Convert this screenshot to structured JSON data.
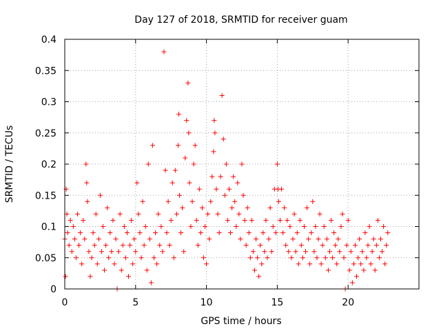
{
  "chart_data": {
    "type": "scatter",
    "title": "Day 127 of 2018, SRMTID for receiver guam",
    "xlabel": "GPS time / hours",
    "ylabel": "SRMTID / TECUs",
    "xlim": [
      0,
      25
    ],
    "ylim": [
      0,
      0.4
    ],
    "x_ticks": [
      0,
      5,
      10,
      15,
      20
    ],
    "x_tick_labels": [
      "0",
      "5",
      "10",
      "15",
      "20"
    ],
    "y_ticks": [
      0,
      0.05,
      0.1,
      0.15,
      0.2,
      0.25,
      0.3,
      0.35,
      0.4
    ],
    "y_tick_labels": [
      "0",
      "0.05",
      "0.1",
      "0.15",
      "0.2",
      "0.25",
      "0.3",
      "0.35",
      "0.4"
    ],
    "grid": true,
    "marker": "+",
    "color": "#ff0000",
    "series": [
      {
        "name": "SRMTID",
        "points": [
          [
            0.0,
            0.08
          ],
          [
            0.05,
            0.02
          ],
          [
            0.1,
            0.16
          ],
          [
            0.15,
            0.12
          ],
          [
            0.2,
            0.09
          ],
          [
            0.3,
            0.07
          ],
          [
            0.4,
            0.11
          ],
          [
            0.5,
            0.06
          ],
          [
            0.6,
            0.1
          ],
          [
            0.7,
            0.08
          ],
          [
            0.8,
            0.05
          ],
          [
            0.9,
            0.12
          ],
          [
            1.0,
            0.07
          ],
          [
            1.1,
            0.09
          ],
          [
            1.2,
            0.04
          ],
          [
            1.3,
            0.11
          ],
          [
            1.4,
            0.08
          ],
          [
            1.5,
            0.2
          ],
          [
            1.55,
            0.17
          ],
          [
            1.6,
            0.14
          ],
          [
            1.7,
            0.06
          ],
          [
            1.8,
            0.02
          ],
          [
            1.9,
            0.05
          ],
          [
            2.0,
            0.09
          ],
          [
            2.1,
            0.07
          ],
          [
            2.2,
            0.12
          ],
          [
            2.3,
            0.04
          ],
          [
            2.4,
            0.08
          ],
          [
            2.5,
            0.15
          ],
          [
            2.6,
            0.06
          ],
          [
            2.7,
            0.1
          ],
          [
            2.8,
            0.03
          ],
          [
            2.9,
            0.07
          ],
          [
            3.0,
            0.13
          ],
          [
            3.1,
            0.05
          ],
          [
            3.2,
            0.09
          ],
          [
            3.3,
            0.06
          ],
          [
            3.4,
            0.11
          ],
          [
            3.5,
            0.04
          ],
          [
            3.6,
            0.08
          ],
          [
            3.7,
            0.0
          ],
          [
            3.8,
            0.06
          ],
          [
            3.9,
            0.12
          ],
          [
            4.0,
            0.03
          ],
          [
            4.1,
            0.07
          ],
          [
            4.2,
            0.1
          ],
          [
            4.3,
            0.05
          ],
          [
            4.4,
            0.09
          ],
          [
            4.5,
            0.02
          ],
          [
            4.6,
            0.07
          ],
          [
            4.7,
            0.11
          ],
          [
            4.8,
            0.04
          ],
          [
            4.9,
            0.08
          ],
          [
            5.0,
            0.06
          ],
          [
            5.1,
            0.17
          ],
          [
            5.2,
            0.12
          ],
          [
            5.3,
            0.09
          ],
          [
            5.4,
            0.05
          ],
          [
            5.5,
            0.14
          ],
          [
            5.6,
            0.07
          ],
          [
            5.7,
            0.1
          ],
          [
            5.8,
            0.03
          ],
          [
            5.9,
            0.2
          ],
          [
            6.0,
            0.08
          ],
          [
            6.1,
            0.01
          ],
          [
            6.2,
            0.23
          ],
          [
            6.3,
            0.05
          ],
          [
            6.4,
            0.09
          ],
          [
            6.5,
            0.04
          ],
          [
            6.6,
            0.12
          ],
          [
            6.7,
            0.07
          ],
          [
            6.8,
            0.1
          ],
          [
            6.9,
            0.06
          ],
          [
            7.0,
            0.38
          ],
          [
            7.1,
            0.19
          ],
          [
            7.2,
            0.09
          ],
          [
            7.3,
            0.14
          ],
          [
            7.4,
            0.07
          ],
          [
            7.5,
            0.11
          ],
          [
            7.6,
            0.17
          ],
          [
            7.7,
            0.05
          ],
          [
            7.8,
            0.19
          ],
          [
            7.9,
            0.12
          ],
          [
            8.0,
            0.23
          ],
          [
            8.05,
            0.28
          ],
          [
            8.1,
            0.15
          ],
          [
            8.2,
            0.09
          ],
          [
            8.3,
            0.13
          ],
          [
            8.4,
            0.06
          ],
          [
            8.5,
            0.21
          ],
          [
            8.6,
            0.27
          ],
          [
            8.7,
            0.33
          ],
          [
            8.75,
            0.25
          ],
          [
            8.8,
            0.17
          ],
          [
            8.9,
            0.1
          ],
          [
            9.0,
            0.14
          ],
          [
            9.1,
            0.2
          ],
          [
            9.2,
            0.23
          ],
          [
            9.3,
            0.11
          ],
          [
            9.4,
            0.07
          ],
          [
            9.5,
            0.16
          ],
          [
            9.6,
            0.09
          ],
          [
            9.7,
            0.13
          ],
          [
            9.8,
            0.05
          ],
          [
            9.9,
            0.1
          ],
          [
            10.0,
            0.04
          ],
          [
            10.1,
            0.12
          ],
          [
            10.2,
            0.08
          ],
          [
            10.3,
            0.14
          ],
          [
            10.4,
            0.18
          ],
          [
            10.5,
            0.22
          ],
          [
            10.55,
            0.27
          ],
          [
            10.6,
            0.25
          ],
          [
            10.7,
            0.16
          ],
          [
            10.8,
            0.12
          ],
          [
            10.9,
            0.09
          ],
          [
            11.0,
            0.18
          ],
          [
            11.1,
            0.31
          ],
          [
            11.2,
            0.24
          ],
          [
            11.3,
            0.15
          ],
          [
            11.4,
            0.2
          ],
          [
            11.5,
            0.11
          ],
          [
            11.6,
            0.16
          ],
          [
            11.7,
            0.09
          ],
          [
            11.8,
            0.13
          ],
          [
            11.9,
            0.18
          ],
          [
            12.0,
            0.14
          ],
          [
            12.1,
            0.1
          ],
          [
            12.2,
            0.17
          ],
          [
            12.3,
            0.12
          ],
          [
            12.4,
            0.08
          ],
          [
            12.5,
            0.2
          ],
          [
            12.6,
            0.15
          ],
          [
            12.7,
            0.11
          ],
          [
            12.8,
            0.07
          ],
          [
            12.9,
            0.13
          ],
          [
            13.0,
            0.09
          ],
          [
            13.1,
            0.05
          ],
          [
            13.2,
            0.11
          ],
          [
            13.3,
            0.06
          ],
          [
            13.4,
            0.03
          ],
          [
            13.5,
            0.08
          ],
          [
            13.6,
            0.05
          ],
          [
            13.7,
            0.02
          ],
          [
            13.8,
            0.07
          ],
          [
            13.9,
            0.04
          ],
          [
            14.0,
            0.09
          ],
          [
            14.1,
            0.06
          ],
          [
            14.2,
            0.11
          ],
          [
            14.3,
            0.05
          ],
          [
            14.4,
            0.08
          ],
          [
            14.5,
            0.13
          ],
          [
            14.6,
            0.06
          ],
          [
            14.7,
            0.1
          ],
          [
            14.8,
            0.16
          ],
          [
            14.9,
            0.09
          ],
          [
            15.0,
            0.2
          ],
          [
            15.05,
            0.16
          ],
          [
            15.1,
            0.14
          ],
          [
            15.2,
            0.11
          ],
          [
            15.3,
            0.16
          ],
          [
            15.4,
            0.09
          ],
          [
            15.5,
            0.13
          ],
          [
            15.6,
            0.07
          ],
          [
            15.7,
            0.11
          ],
          [
            15.8,
            0.06
          ],
          [
            15.9,
            0.1
          ],
          [
            16.0,
            0.05
          ],
          [
            16.1,
            0.08
          ],
          [
            16.2,
            0.12
          ],
          [
            16.3,
            0.06
          ],
          [
            16.4,
            0.09
          ],
          [
            16.5,
            0.04
          ],
          [
            16.6,
            0.11
          ],
          [
            16.7,
            0.07
          ],
          [
            16.8,
            0.05
          ],
          [
            16.9,
            0.1
          ],
          [
            17.0,
            0.06
          ],
          [
            17.1,
            0.13
          ],
          [
            17.2,
            0.08
          ],
          [
            17.3,
            0.04
          ],
          [
            17.4,
            0.09
          ],
          [
            17.5,
            0.14
          ],
          [
            17.6,
            0.06
          ],
          [
            17.7,
            0.1
          ],
          [
            17.8,
            0.05
          ],
          [
            17.9,
            0.08
          ],
          [
            18.0,
            0.12
          ],
          [
            18.1,
            0.04
          ],
          [
            18.2,
            0.07
          ],
          [
            18.3,
            0.1
          ],
          [
            18.4,
            0.05
          ],
          [
            18.5,
            0.08
          ],
          [
            18.6,
            0.03
          ],
          [
            18.7,
            0.06
          ],
          [
            18.8,
            0.11
          ],
          [
            18.9,
            0.05
          ],
          [
            19.0,
            0.09
          ],
          [
            19.1,
            0.07
          ],
          [
            19.2,
            0.04
          ],
          [
            19.3,
            0.08
          ],
          [
            19.4,
            0.06
          ],
          [
            19.5,
            0.1
          ],
          [
            19.6,
            0.12
          ],
          [
            19.7,
            0.05
          ],
          [
            19.8,
            0.0
          ],
          [
            19.9,
            0.07
          ],
          [
            20.0,
            0.11
          ],
          [
            20.1,
            0.03
          ],
          [
            20.2,
            0.06
          ],
          [
            20.3,
            0.01
          ],
          [
            20.4,
            0.04
          ],
          [
            20.5,
            0.07
          ],
          [
            20.6,
            0.02
          ],
          [
            20.7,
            0.05
          ],
          [
            20.8,
            0.08
          ],
          [
            20.9,
            0.04
          ],
          [
            21.0,
            0.06
          ],
          [
            21.1,
            0.03
          ],
          [
            21.2,
            0.09
          ],
          [
            21.3,
            0.05
          ],
          [
            21.4,
            0.07
          ],
          [
            21.5,
            0.1
          ],
          [
            21.6,
            0.04
          ],
          [
            21.7,
            0.06
          ],
          [
            21.8,
            0.08
          ],
          [
            21.9,
            0.03
          ],
          [
            22.0,
            0.07
          ],
          [
            22.1,
            0.11
          ],
          [
            22.2,
            0.05
          ],
          [
            22.3,
            0.08
          ],
          [
            22.4,
            0.06
          ],
          [
            22.5,
            0.1
          ],
          [
            22.6,
            0.04
          ],
          [
            22.7,
            0.07
          ],
          [
            22.8,
            0.09
          ]
        ]
      }
    ]
  }
}
